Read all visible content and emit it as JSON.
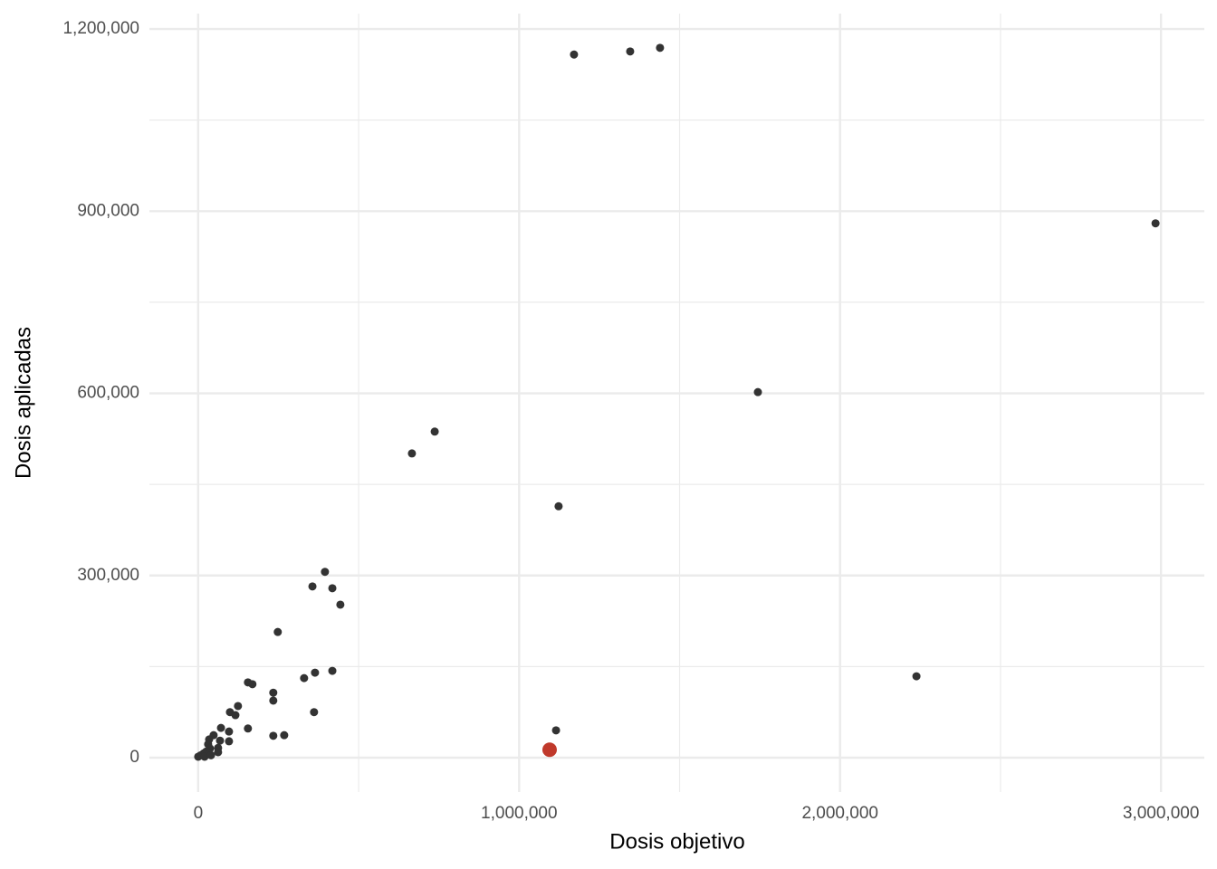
{
  "chart_data": {
    "type": "scatter",
    "x_label": "Dosis objetivo",
    "y_label": "Dosis aplicadas",
    "xlim": [
      -152000,
      3135000
    ],
    "ylim": [
      -56650,
      1225400
    ],
    "xticks": [
      0,
      {
        "value": 1000000,
        "label": "1,000,000"
      },
      {
        "value": 2000000,
        "label": "2,000,000"
      },
      {
        "value": 3000000,
        "label": "3,000,000"
      }
    ],
    "yticks": [
      0,
      {
        "value": 300000,
        "label": "300,000"
      },
      {
        "value": 600000,
        "label": "600,000"
      },
      {
        "value": 900000,
        "label": "900,000"
      },
      {
        "value": 1200000,
        "label": "1,200,000"
      }
    ],
    "x_minor_grid": [
      500000,
      1500000,
      2500000
    ],
    "y_minor_grid": [
      150000,
      450000,
      750000,
      1050000
    ],
    "grid": true,
    "color": "#333333",
    "x": [
      1171000,
      1346000,
      1439000,
      2983000,
      1744000,
      666000,
      737000,
      1123000,
      395000,
      356000,
      418000,
      443000,
      248000,
      2238000,
      155000,
      169000,
      330000,
      364000,
      418000,
      234000,
      234000,
      124000,
      99000,
      116000,
      361000,
      155000,
      71000,
      96000,
      234000,
      268000,
      1115000,
      48000,
      68000,
      96000,
      34000,
      31000,
      62000,
      62000,
      37000,
      25000,
      17000,
      8000,
      0,
      20000,
      40000
    ],
    "values": [
      1158000,
      1163000,
      1169000,
      880000,
      602000,
      501000,
      537000,
      414000,
      306000,
      282000,
      279000,
      252000,
      207000,
      134000,
      124000,
      121000,
      131000,
      140000,
      143000,
      107000,
      94000,
      85000,
      75000,
      70000,
      75000,
      48000,
      49000,
      43000,
      36000,
      37000,
      45000,
      37000,
      28000,
      27000,
      30000,
      22000,
      16000,
      9000,
      15000,
      10000,
      7000,
      4000,
      1500,
      1500,
      4000
    ],
    "highlight": {
      "x": 1095000,
      "value": 13000,
      "color": "#c0392b"
    }
  }
}
